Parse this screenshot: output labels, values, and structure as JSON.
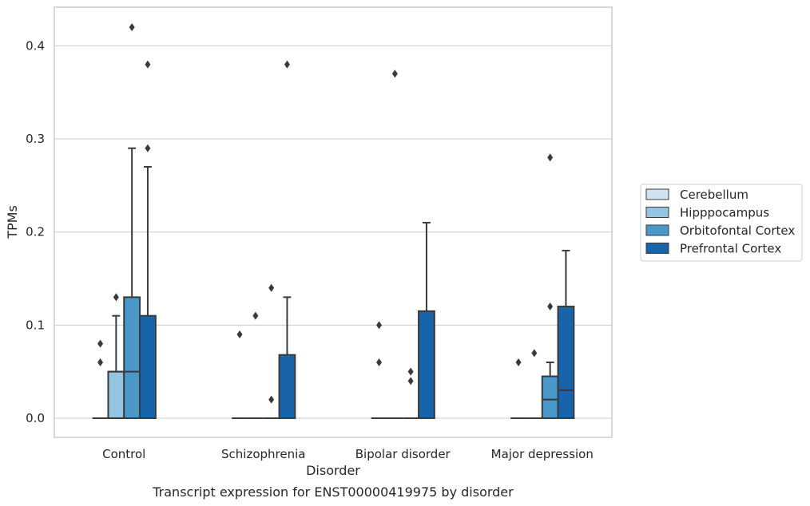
{
  "chart_data": {
    "type": "box",
    "caption": "Transcript expression for ENST00000419975 by disorder",
    "xlabel": "Disorder",
    "ylabel": "TPMs",
    "ylim": [
      -0.02,
      0.44
    ],
    "yticks": [
      0.0,
      0.1,
      0.2,
      0.3,
      0.4
    ],
    "ytick_labels": [
      "0.0",
      "0.1",
      "0.2",
      "0.3",
      "0.4"
    ],
    "grid": true,
    "legend_placement": "right, outside plot",
    "categories": [
      "Control",
      "Schizophrenia",
      "Bipolar disorder",
      "Major depression"
    ],
    "series": [
      {
        "name": "Cerebellum",
        "color": "#d0e1f2",
        "boxes": [
          {
            "q1": 0,
            "median": 0,
            "q3": 0,
            "wlow": 0,
            "whigh": 0,
            "fliers": [
              0.06,
              0.08
            ]
          },
          {
            "q1": 0,
            "median": 0,
            "q3": 0,
            "wlow": 0,
            "whigh": 0,
            "fliers": [
              0.09
            ]
          },
          {
            "q1": 0,
            "median": 0,
            "q3": 0,
            "wlow": 0,
            "whigh": 0,
            "fliers": [
              0.06,
              0.1
            ]
          },
          {
            "q1": 0,
            "median": 0,
            "q3": 0,
            "wlow": 0,
            "whigh": 0,
            "fliers": [
              0.06
            ]
          }
        ]
      },
      {
        "name": "Hipppocampus",
        "color": "#94c4df",
        "boxes": [
          {
            "q1": 0,
            "median": 0.05,
            "q3": 0.05,
            "wlow": 0,
            "whigh": 0.11,
            "fliers": [
              0.13
            ]
          },
          {
            "q1": 0,
            "median": 0,
            "q3": 0,
            "wlow": 0,
            "whigh": 0,
            "fliers": [
              0.11
            ]
          },
          {
            "q1": 0,
            "median": 0,
            "q3": 0,
            "wlow": 0,
            "whigh": 0,
            "fliers": [
              0.37
            ]
          },
          {
            "q1": 0,
            "median": 0,
            "q3": 0,
            "wlow": 0,
            "whigh": 0,
            "fliers": [
              0.07
            ]
          }
        ]
      },
      {
        "name": "Orbitofontal Cortex",
        "color": "#4a98c9",
        "boxes": [
          {
            "q1": 0,
            "median": 0.05,
            "q3": 0.13,
            "wlow": 0,
            "whigh": 0.29,
            "fliers": [
              0.42
            ]
          },
          {
            "q1": 0,
            "median": 0,
            "q3": 0,
            "wlow": 0,
            "whigh": 0,
            "fliers": [
              0.02,
              0.14
            ]
          },
          {
            "q1": 0,
            "median": 0,
            "q3": 0,
            "wlow": 0,
            "whigh": 0,
            "fliers": [
              0.04,
              0.05
            ]
          },
          {
            "q1": 0,
            "median": 0.02,
            "q3": 0.045,
            "wlow": 0,
            "whigh": 0.06,
            "fliers": [
              0.12,
              0.28
            ]
          }
        ]
      },
      {
        "name": "Prefrontal Cortex",
        "color": "#1764ab",
        "boxes": [
          {
            "q1": 0,
            "median": 0,
            "q3": 0.11,
            "wlow": 0,
            "whigh": 0.27,
            "fliers": [
              0.29,
              0.38
            ]
          },
          {
            "q1": 0,
            "median": 0,
            "q3": 0.068,
            "wlow": 0,
            "whigh": 0.13,
            "fliers": [
              0.38
            ]
          },
          {
            "q1": 0,
            "median": 0,
            "q3": 0.115,
            "wlow": 0,
            "whigh": 0.21,
            "fliers": []
          },
          {
            "q1": 0,
            "median": 0.03,
            "q3": 0.12,
            "wlow": 0,
            "whigh": 0.18,
            "fliers": []
          }
        ]
      }
    ]
  }
}
